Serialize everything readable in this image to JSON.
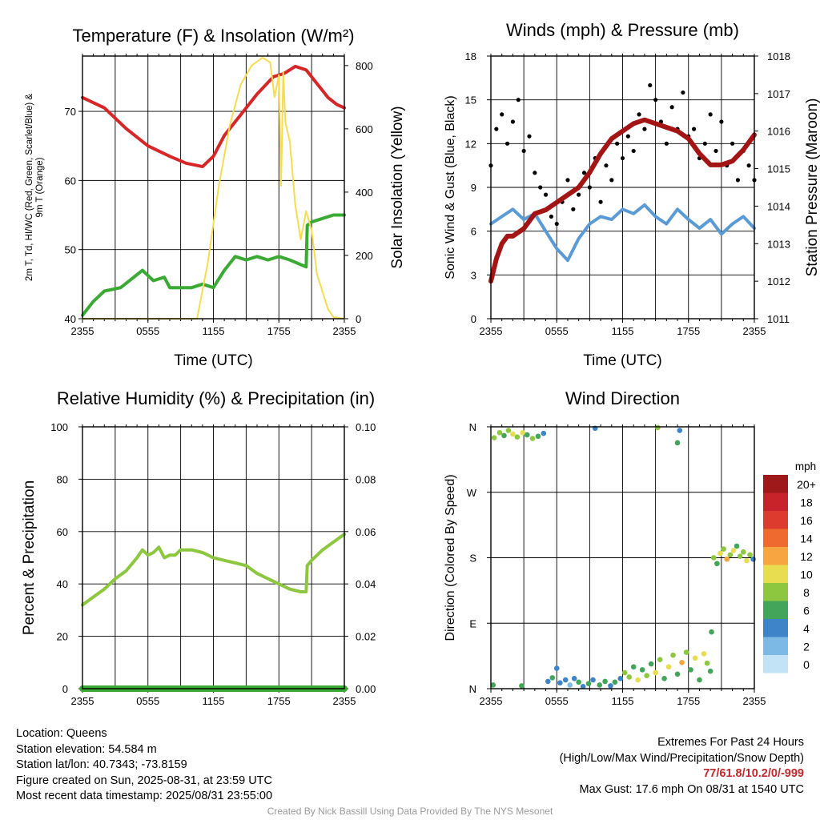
{
  "chart_data": [
    {
      "type": "line",
      "title": "Temperature (F) & Insolation (W/m²)",
      "xlabel": "Time (UTC)",
      "ylabel_left": "2m T, Td, HI/WC (Red, Green, Scarlet/Blue) & 9m T (Orange)",
      "ylabel_right": "Solar Insolation (Yellow)",
      "x_ticks": [
        "2355",
        "0555",
        "1155",
        "1755",
        "2355"
      ],
      "ylim": [
        40,
        78
      ],
      "y_ticks": [
        40,
        50,
        60,
        70
      ],
      "ylim_right": [
        0,
        830
      ],
      "y_ticks_right": [
        0,
        200,
        400,
        600,
        800
      ],
      "x_units": "hours since 2355 UTC",
      "series": [
        {
          "name": "2m T",
          "color": "#d62728",
          "axis": "left",
          "x": [
            0,
            2,
            4,
            6,
            8,
            9.5,
            11,
            12,
            13,
            14.5,
            16,
            17.5,
            18.5,
            19.5,
            20.5,
            21.5,
            22.5,
            23.3,
            24
          ],
          "y": [
            72.0,
            70.5,
            67.5,
            65.0,
            63.5,
            62.5,
            62.0,
            63.5,
            66.5,
            69.5,
            72.5,
            75.0,
            75.5,
            76.5,
            76.0,
            74.0,
            72.0,
            71.0,
            70.5
          ]
        },
        {
          "name": "Td",
          "color": "#3aaa35",
          "axis": "left",
          "x": [
            0,
            1,
            2,
            3.5,
            5.5,
            6.5,
            7.5,
            8,
            9,
            10,
            11,
            12,
            13,
            14,
            15,
            16,
            17,
            18,
            19,
            20.5,
            20.6,
            21,
            22,
            23,
            24
          ],
          "y": [
            40.5,
            42.5,
            44.0,
            44.5,
            47.0,
            45.5,
            46.0,
            44.5,
            44.5,
            44.5,
            45.0,
            44.5,
            47.0,
            49.0,
            48.5,
            49.0,
            48.5,
            49.0,
            48.5,
            47.5,
            53.5,
            54.0,
            54.5,
            55.0,
            55.0
          ]
        },
        {
          "name": "Solar Insolation",
          "color": "#f5dc50",
          "axis": "right",
          "x": [
            0,
            10.5,
            11.5,
            12.5,
            13.5,
            14.5,
            15.5,
            16.5,
            17.2,
            17.6,
            18.0,
            18.2,
            18.4,
            18.6,
            19.0,
            19.5,
            20.0,
            20.5,
            21.0,
            21.5,
            22.5,
            23.0,
            24
          ],
          "y": [
            0,
            0,
            180,
            420,
            610,
            740,
            800,
            825,
            810,
            700,
            770,
            420,
            780,
            620,
            560,
            360,
            250,
            340,
            280,
            140,
            30,
            5,
            0
          ]
        }
      ]
    },
    {
      "type": "line",
      "title": "Winds (mph) & Pressure (mb)",
      "xlabel": "Time (UTC)",
      "ylabel_left": "Sonic Wind & Gust (Blue, Black)",
      "ylabel_right": "Station Pressure (Maroon)",
      "x_ticks": [
        "2355",
        "0555",
        "1155",
        "1755",
        "2355"
      ],
      "ylim": [
        0,
        18
      ],
      "y_ticks": [
        0,
        3,
        6,
        9,
        12,
        15,
        18
      ],
      "ylim_right": [
        1011,
        1018
      ],
      "y_ticks_right": [
        1011,
        1012,
        1013,
        1014,
        1015,
        1016,
        1017,
        1018
      ],
      "x_units": "hours since 2355 UTC",
      "series": [
        {
          "name": "Sonic Wind",
          "color": "#5b9bd5",
          "axis": "left",
          "x": [
            0,
            1,
            2,
            3,
            4,
            5,
            6,
            7,
            8,
            9,
            10,
            11,
            12,
            13,
            14,
            15,
            16,
            17,
            18,
            19,
            20,
            21,
            22,
            23,
            24
          ],
          "y": [
            6.5,
            7.0,
            7.5,
            6.8,
            7.2,
            6.0,
            4.8,
            4.0,
            5.5,
            6.5,
            7.0,
            6.8,
            7.5,
            7.2,
            7.8,
            7.0,
            6.5,
            7.5,
            6.8,
            6.2,
            6.8,
            5.8,
            6.5,
            7.0,
            6.2
          ]
        },
        {
          "name": "Gust",
          "color": "#000000",
          "axis": "left",
          "x": [
            0,
            0.5,
            1,
            1.5,
            2,
            2.5,
            3,
            3.5,
            4,
            4.5,
            5,
            5.5,
            6,
            6.5,
            7,
            7.5,
            8,
            8.5,
            9,
            9.5,
            10,
            10.5,
            11,
            11.5,
            12,
            12.5,
            13,
            13.5,
            14,
            14.5,
            15,
            15.5,
            16,
            16.5,
            17,
            17.5,
            18,
            18.5,
            19,
            19.5,
            20,
            20.5,
            21,
            21.5,
            22,
            22.5,
            23,
            23.5,
            24
          ],
          "y": [
            10.5,
            13.0,
            14.0,
            12.0,
            13.5,
            15.0,
            11.5,
            12.5,
            10.0,
            9.0,
            8.5,
            7.0,
            6.5,
            8.0,
            9.5,
            7.5,
            8.5,
            10.0,
            9.0,
            11.0,
            8.0,
            10.5,
            9.5,
            12.0,
            11.0,
            12.5,
            11.5,
            14.0,
            13.0,
            16.0,
            15.0,
            13.5,
            12.0,
            14.5,
            13.0,
            15.5,
            12.5,
            13.0,
            11.0,
            12.0,
            14.0,
            11.5,
            13.5,
            10.5,
            12.0,
            9.5,
            11.5,
            10.5,
            9.5
          ]
        },
        {
          "name": "Station Pressure",
          "color": "#a31515",
          "axis": "right",
          "x": [
            0,
            0.5,
            1,
            1.5,
            2,
            3,
            4,
            5,
            6,
            7,
            8,
            9,
            10,
            11,
            12,
            13,
            14,
            15,
            16,
            17,
            18,
            19,
            20,
            21,
            22,
            23,
            24
          ],
          "y": [
            1012.0,
            1012.6,
            1013.0,
            1013.2,
            1013.2,
            1013.4,
            1013.8,
            1013.9,
            1014.1,
            1014.3,
            1014.5,
            1014.9,
            1015.4,
            1015.8,
            1016.0,
            1016.2,
            1016.3,
            1016.2,
            1016.1,
            1016.0,
            1015.8,
            1015.4,
            1015.1,
            1015.1,
            1015.2,
            1015.5,
            1015.9
          ]
        }
      ]
    },
    {
      "type": "line",
      "title": "Relative Humidity (%) & Precipitation (in)",
      "xlabel": "",
      "ylabel_left": "Percent & Precipitation",
      "x_ticks": [
        "2355",
        "0555",
        "1155",
        "1755",
        "2355"
      ],
      "ylim": [
        0,
        100
      ],
      "y_ticks": [
        0,
        20,
        40,
        60,
        80,
        100
      ],
      "ylim_right": [
        0,
        0.1
      ],
      "y_ticks_right": [
        "0.00",
        "0.02",
        "0.04",
        "0.06",
        "0.08",
        "0.10"
      ],
      "x_units": "hours since 2355 UTC",
      "series": [
        {
          "name": "Relative Humidity",
          "color": "#8dc63f",
          "axis": "left",
          "x": [
            0,
            1,
            2,
            3,
            4,
            5,
            5.5,
            6,
            6.5,
            7,
            7.5,
            8,
            8.5,
            9,
            10,
            11,
            12,
            13,
            14,
            15,
            16,
            17,
            18,
            19,
            20,
            20.5,
            20.6,
            21,
            22,
            23,
            24
          ],
          "y": [
            32,
            35,
            38,
            42,
            45,
            50,
            53,
            51,
            52,
            54,
            50,
            51,
            51,
            53,
            53,
            52,
            50,
            49,
            48,
            47,
            44,
            42,
            40,
            38,
            37,
            37,
            47,
            49,
            53,
            56,
            59
          ]
        },
        {
          "name": "Precipitation",
          "color": "#3aaa35",
          "axis": "right",
          "x": [
            0,
            24
          ],
          "y": [
            0,
            0
          ]
        }
      ]
    },
    {
      "type": "scatter",
      "title": "Wind Direction",
      "ylabel_left": "Direction (Colored By Speed)",
      "x_ticks": [
        "2355",
        "0555",
        "1155",
        "1755",
        "2355"
      ],
      "y_ticks": [
        "N",
        "E",
        "S",
        "W",
        "N"
      ],
      "ylim": [
        0,
        360
      ],
      "legend_title": "mph",
      "legend_labels": [
        "20+",
        "18",
        "16",
        "14",
        "12",
        "10",
        "8",
        "6",
        "4",
        "2",
        "0"
      ],
      "legend_colors": [
        "#9e1a1a",
        "#c8232c",
        "#dc3b2e",
        "#ee6a2f",
        "#f7a540",
        "#e8dc50",
        "#8dc63f",
        "#43a55a",
        "#3d85c6",
        "#7cb9e4",
        "#c2e2f5"
      ],
      "x_units": "hours since 2355 UTC",
      "points": [
        {
          "x": 0.2,
          "y": 5,
          "s": 6
        },
        {
          "x": 2.8,
          "y": 4,
          "s": 6
        },
        {
          "x": 0.3,
          "y": 345,
          "s": 8
        },
        {
          "x": 0.8,
          "y": 352,
          "s": 7
        },
        {
          "x": 1.2,
          "y": 348,
          "s": 6
        },
        {
          "x": 1.6,
          "y": 355,
          "s": 8
        },
        {
          "x": 2.0,
          "y": 350,
          "s": 9
        },
        {
          "x": 2.4,
          "y": 346,
          "s": 7
        },
        {
          "x": 2.9,
          "y": 352,
          "s": 10
        },
        {
          "x": 3.3,
          "y": 349,
          "s": 6
        },
        {
          "x": 3.8,
          "y": 344,
          "s": 8
        },
        {
          "x": 4.3,
          "y": 347,
          "s": 5
        },
        {
          "x": 4.8,
          "y": 351,
          "s": 4
        },
        {
          "x": 9.5,
          "y": 358,
          "s": 4
        },
        {
          "x": 15.2,
          "y": 359,
          "s": 8
        },
        {
          "x": 17.0,
          "y": 338,
          "s": 6
        },
        {
          "x": 17.2,
          "y": 355,
          "s": 4
        },
        {
          "x": 5.2,
          "y": 10,
          "s": 4
        },
        {
          "x": 5.6,
          "y": 15,
          "s": 5
        },
        {
          "x": 6.0,
          "y": 28,
          "s": 4
        },
        {
          "x": 6.3,
          "y": 8,
          "s": 3
        },
        {
          "x": 6.8,
          "y": 12,
          "s": 4
        },
        {
          "x": 7.2,
          "y": 5,
          "s": 2
        },
        {
          "x": 7.6,
          "y": 14,
          "s": 4
        },
        {
          "x": 8.0,
          "y": 9,
          "s": 5
        },
        {
          "x": 8.4,
          "y": 3,
          "s": 4
        },
        {
          "x": 8.9,
          "y": 7,
          "s": 6
        },
        {
          "x": 9.3,
          "y": 12,
          "s": 4
        },
        {
          "x": 9.9,
          "y": 5,
          "s": 6
        },
        {
          "x": 10.4,
          "y": 10,
          "s": 5
        },
        {
          "x": 10.9,
          "y": 4,
          "s": 4
        },
        {
          "x": 11.3,
          "y": 9,
          "s": 6
        },
        {
          "x": 11.8,
          "y": 14,
          "s": 4
        },
        {
          "x": 12.2,
          "y": 22,
          "s": 7
        },
        {
          "x": 12.6,
          "y": 16,
          "s": 8
        },
        {
          "x": 13.0,
          "y": 30,
          "s": 6
        },
        {
          "x": 13.4,
          "y": 12,
          "s": 9
        },
        {
          "x": 13.8,
          "y": 26,
          "s": 5
        },
        {
          "x": 14.2,
          "y": 18,
          "s": 8
        },
        {
          "x": 14.6,
          "y": 34,
          "s": 6
        },
        {
          "x": 15.0,
          "y": 22,
          "s": 10
        },
        {
          "x": 15.4,
          "y": 40,
          "s": 7
        },
        {
          "x": 15.8,
          "y": 14,
          "s": 5
        },
        {
          "x": 16.2,
          "y": 30,
          "s": 9
        },
        {
          "x": 16.6,
          "y": 46,
          "s": 8
        },
        {
          "x": 17.0,
          "y": 20,
          "s": 6
        },
        {
          "x": 17.4,
          "y": 36,
          "s": 11
        },
        {
          "x": 17.8,
          "y": 50,
          "s": 7
        },
        {
          "x": 18.2,
          "y": 26,
          "s": 5
        },
        {
          "x": 18.6,
          "y": 42,
          "s": 9
        },
        {
          "x": 19.0,
          "y": 12,
          "s": 6
        },
        {
          "x": 19.4,
          "y": 48,
          "s": 10
        },
        {
          "x": 19.7,
          "y": 35,
          "s": 7
        },
        {
          "x": 20.0,
          "y": 24,
          "s": 6
        },
        {
          "x": 20.1,
          "y": 78,
          "s": 6
        },
        {
          "x": 20.3,
          "y": 180,
          "s": 8
        },
        {
          "x": 20.6,
          "y": 172,
          "s": 5
        },
        {
          "x": 20.9,
          "y": 186,
          "s": 10
        },
        {
          "x": 21.2,
          "y": 192,
          "s": 8
        },
        {
          "x": 21.5,
          "y": 178,
          "s": 11
        },
        {
          "x": 21.8,
          "y": 184,
          "s": 7
        },
        {
          "x": 22.1,
          "y": 190,
          "s": 9
        },
        {
          "x": 22.4,
          "y": 196,
          "s": 6
        },
        {
          "x": 22.7,
          "y": 182,
          "s": 8
        },
        {
          "x": 23.0,
          "y": 188,
          "s": 7
        },
        {
          "x": 23.3,
          "y": 176,
          "s": 9
        },
        {
          "x": 23.6,
          "y": 184,
          "s": 8
        },
        {
          "x": 23.9,
          "y": 178,
          "s": 4
        }
      ]
    }
  ],
  "info": {
    "location": "Location: Queens",
    "elevation": "Station elevation: 54.584 m",
    "latlon": "Station lat/lon: 40.7343; -73.8159",
    "created": "Figure created on Sun, 2025-08-31, at 23:59 UTC",
    "recent": "Most recent data timestamp: 2025/08/31 23:55:00"
  },
  "extremes": {
    "heading": "Extremes For Past 24 Hours",
    "subheading": "(High/Low/Max Wind/Precipitation/Snow Depth)",
    "values": "77/61.8/10.2/0/-999",
    "gust": "Max Gust: 17.6 mph On 08/31 at 1540 UTC"
  },
  "credit": "Created By Nick Bassill Using Data Provided By The NYS Mesonet"
}
